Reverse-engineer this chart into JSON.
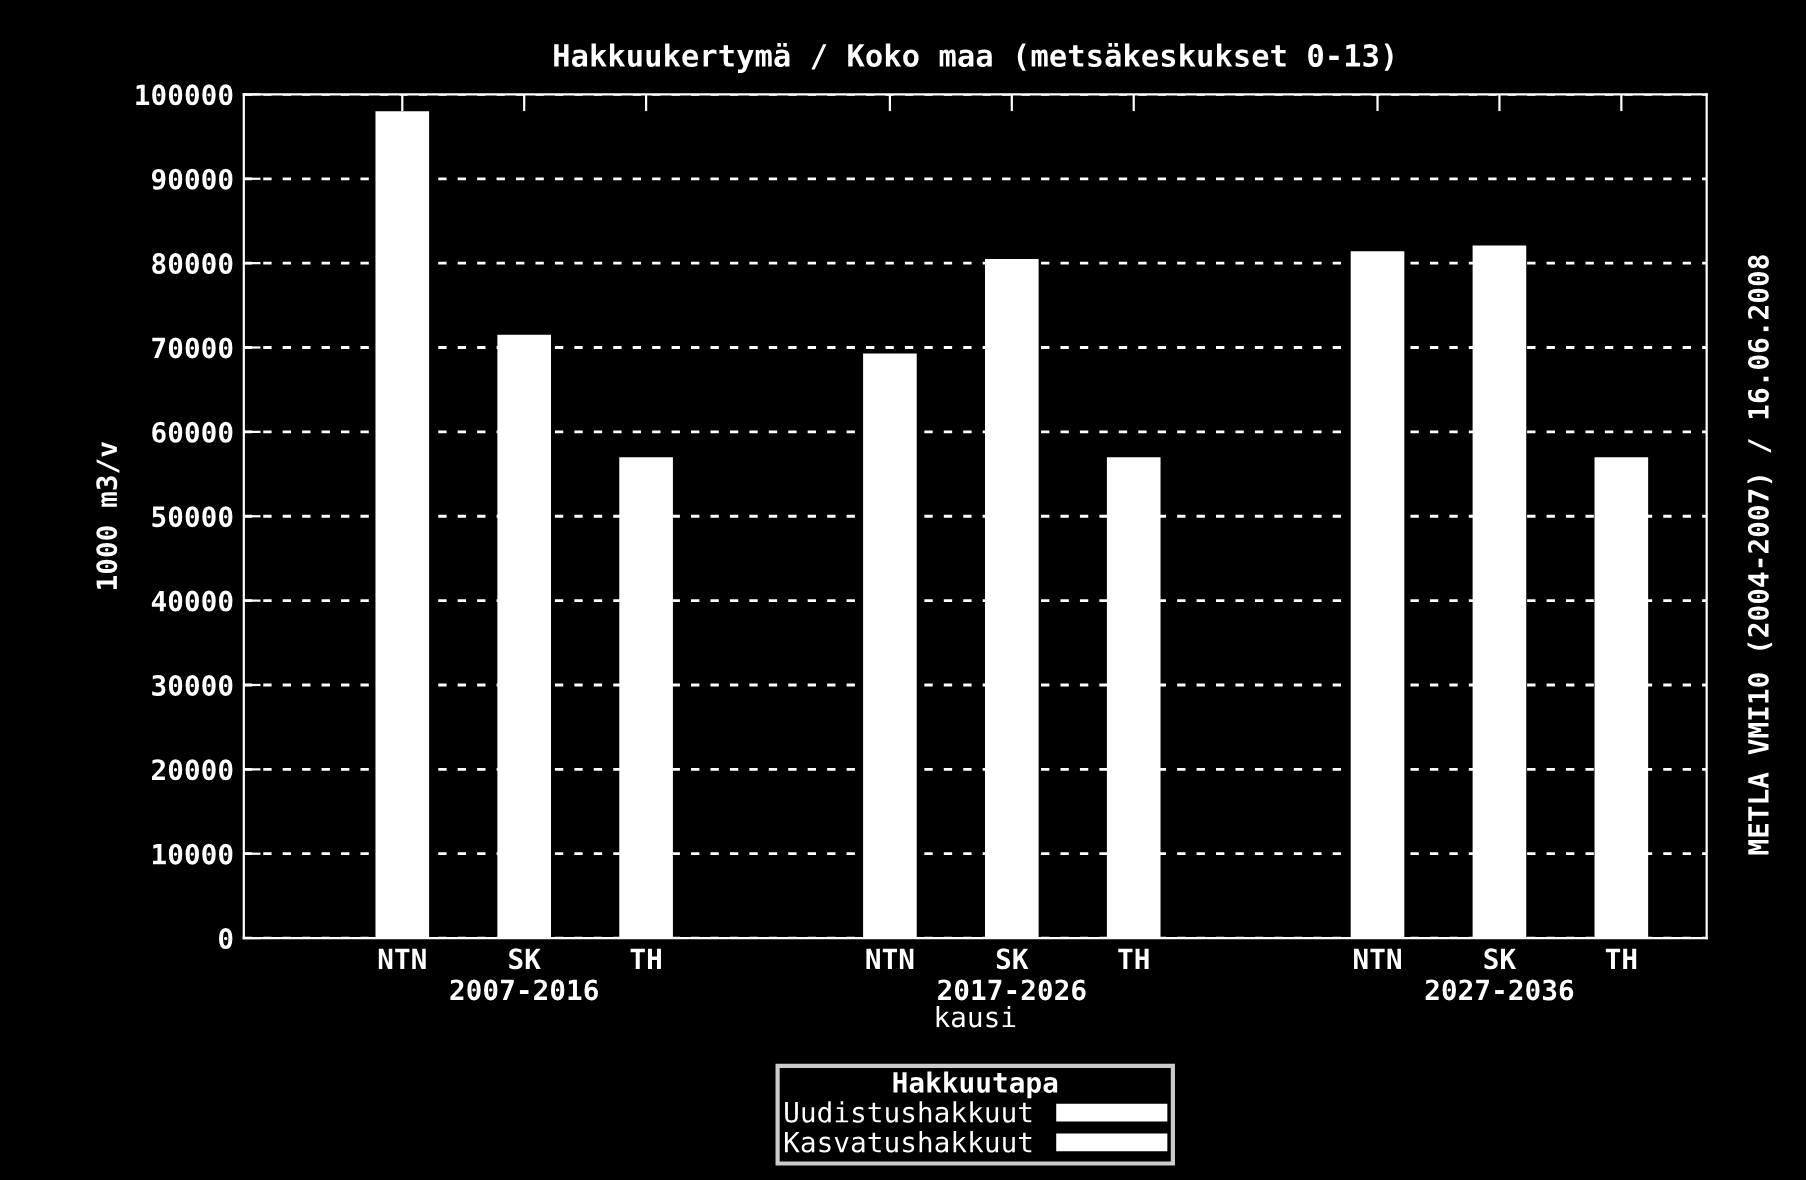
{
  "chart_data": {
    "type": "bar",
    "title": "Hakkuukertymä / Koko maa (metsäkeskukset 0-13)",
    "xlabel": "kausi",
    "ylabel": "1000 m3/v",
    "legend_title": "Hakkuutapa",
    "categories": [
      "NTN",
      "SK\n2007-2016",
      "TH",
      null,
      "NTN",
      "SK\n2017-2026",
      "TH",
      null,
      "NTN",
      "SK\n2027-2036",
      "TH"
    ],
    "series": [
      {
        "name": "Uudistushakkuut",
        "color": "#ffffff",
        "values": [
          98000,
          71500,
          57000,
          null,
          69300,
          80500,
          57000,
          null,
          81400,
          82100,
          57000
        ]
      },
      {
        "name": "Kasvatushakkuut",
        "color": "#ffffff",
        "values": [
          null,
          null,
          null,
          null,
          null,
          null,
          null,
          null,
          null,
          null,
          null
        ]
      }
    ],
    "ylim": [
      0,
      100000
    ],
    "yticks": [
      0,
      10000,
      20000,
      30000,
      40000,
      50000,
      60000,
      70000,
      80000,
      90000,
      100000
    ],
    "grid": "y",
    "legend": "bottom",
    "annotations": [
      "METLA VMI10 (2004-2007) / 16.06.2008"
    ]
  }
}
